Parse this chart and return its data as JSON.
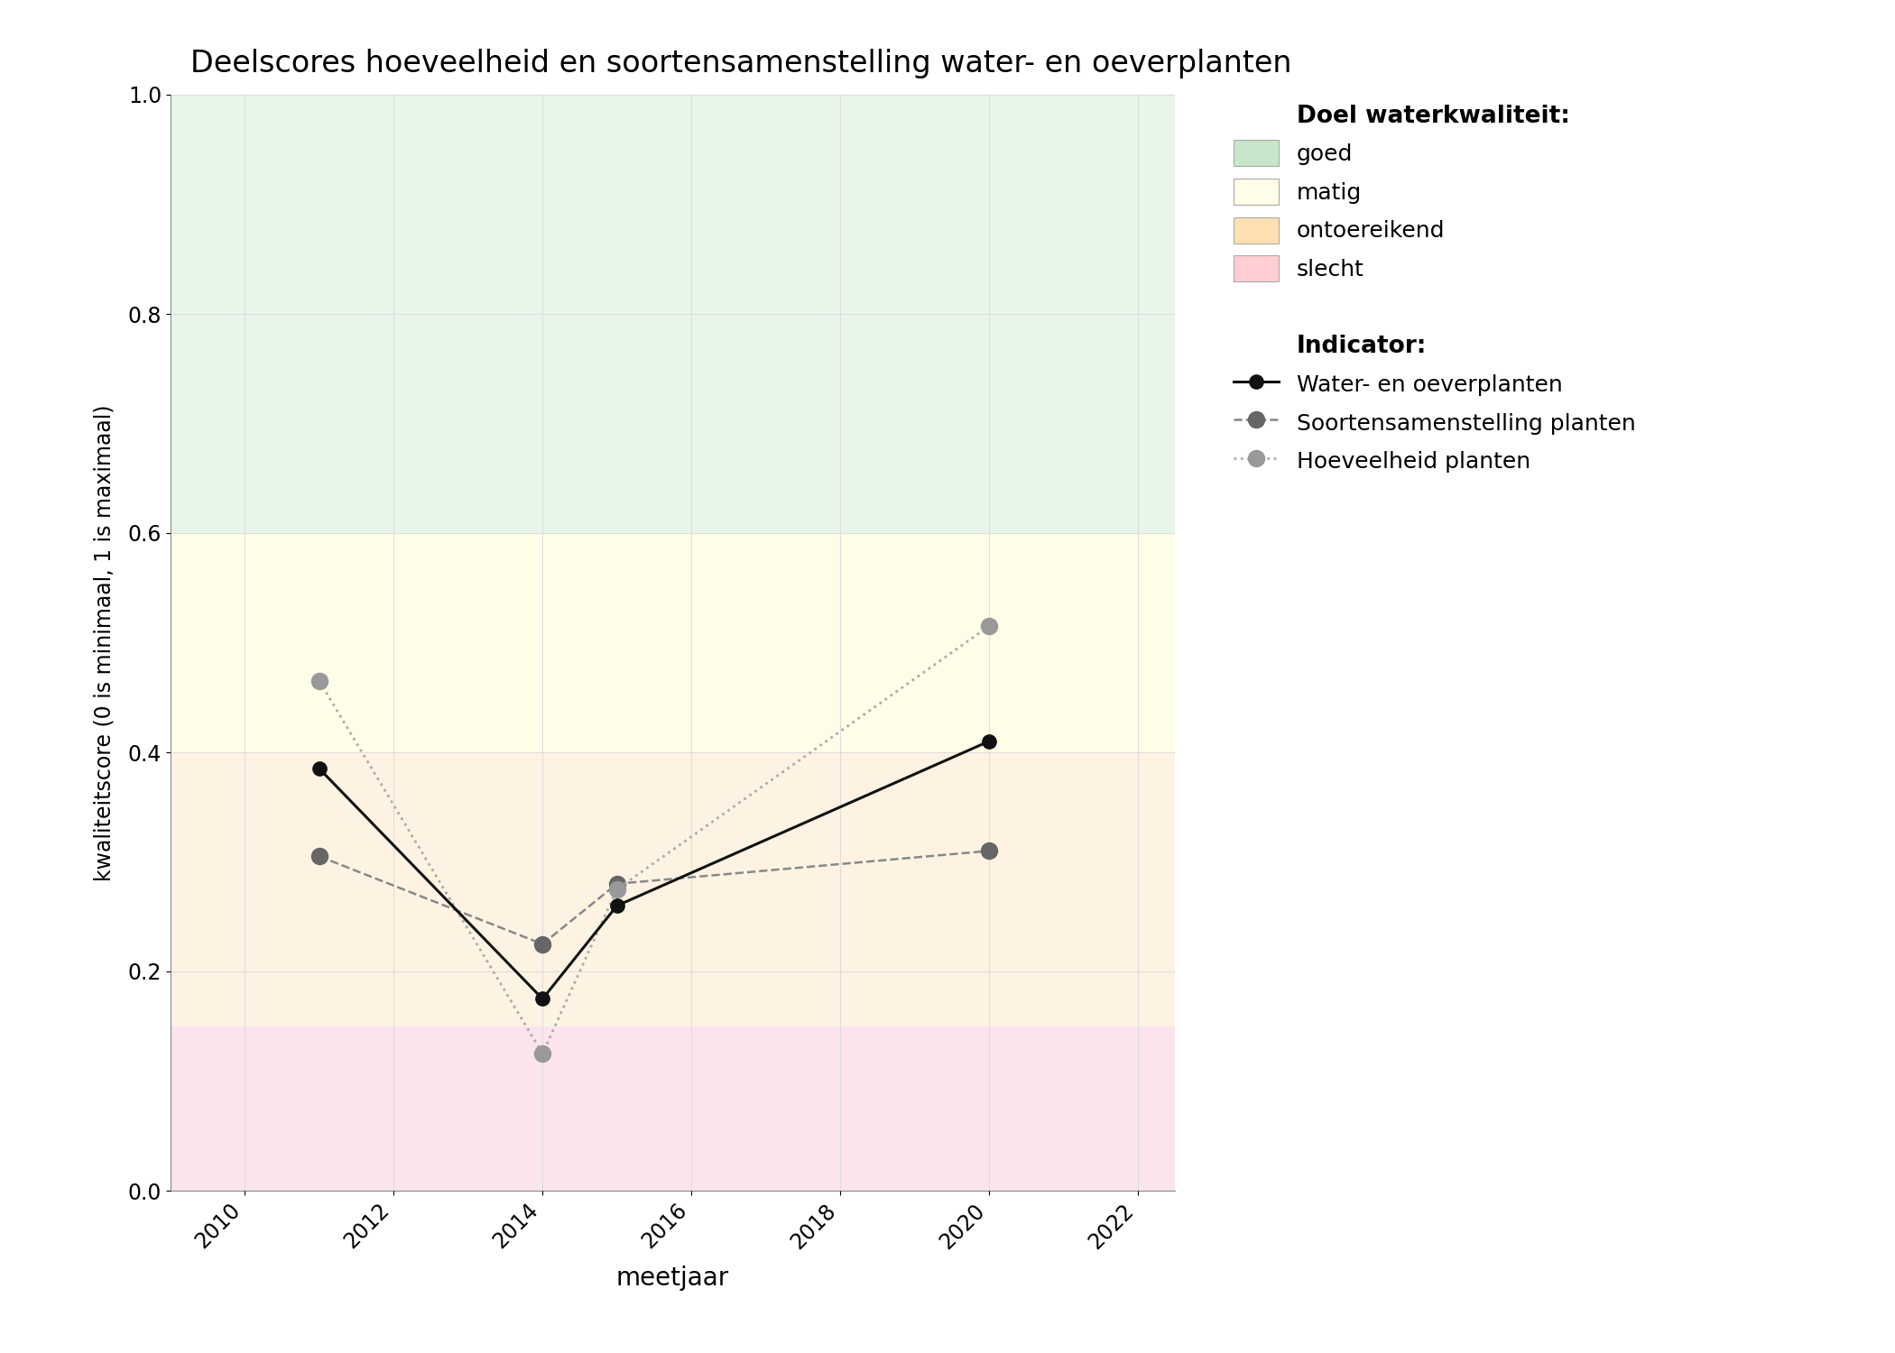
{
  "title": "Deelscores hoeveelheid en soortensamenstelling water- en oeverplanten",
  "xlabel": "meetjaar",
  "ylabel": "kwaliteitscore (0 is minimaal, 1 is maximaal)",
  "xlim": [
    2009.0,
    2022.5
  ],
  "ylim": [
    0.0,
    1.0
  ],
  "xticks": [
    2010,
    2012,
    2014,
    2016,
    2018,
    2020,
    2022
  ],
  "yticks": [
    0.0,
    0.2,
    0.4,
    0.6,
    0.8,
    1.0
  ],
  "bg_color": "#ffffff",
  "plot_bg_color": "#ffffff",
  "zones": [
    {
      "label": "goed",
      "ymin": 0.6,
      "ymax": 1.0,
      "color": "#e8f5e9"
    },
    {
      "label": "matig",
      "ymin": 0.4,
      "ymax": 0.6,
      "color": "#fefde7"
    },
    {
      "label": "ontoereikend",
      "ymin": 0.15,
      "ymax": 0.4,
      "color": "#fef3e2"
    },
    {
      "label": "slecht",
      "ymin": 0.0,
      "ymax": 0.15,
      "color": "#fce4ec"
    }
  ],
  "line_water_oever": {
    "label": "Water- en oeverplanten",
    "years": [
      2011,
      2014,
      2015,
      2020
    ],
    "values": [
      0.385,
      0.175,
      0.26,
      0.41
    ],
    "color": "#111111",
    "linestyle": "-",
    "linewidth": 2.2,
    "marker": "o",
    "markersize": 11,
    "markerfacecolor": "#111111",
    "markeredgecolor": "#111111",
    "zorder": 5
  },
  "line_soorten": {
    "label": "Soortensamenstelling planten",
    "years": [
      2011,
      2014,
      2015,
      2020
    ],
    "values": [
      0.305,
      0.225,
      0.28,
      0.31
    ],
    "color": "#888888",
    "linestyle": "--",
    "linewidth": 1.8,
    "marker": "o",
    "markersize": 13,
    "markerfacecolor": "#666666",
    "markeredgecolor": "#666666",
    "zorder": 4
  },
  "line_hoeveelheid": {
    "label": "Hoeveelheid planten",
    "years": [
      2011,
      2014,
      2015,
      2020
    ],
    "values": [
      0.465,
      0.125,
      0.275,
      0.515
    ],
    "color": "#aaaaaa",
    "linestyle": ":",
    "linewidth": 2.0,
    "marker": "o",
    "markersize": 13,
    "markerfacecolor": "#999999",
    "markeredgecolor": "#999999",
    "zorder": 4
  },
  "legend_title_doel": "Doel waterkwaliteit:",
  "legend_title_indicator": "Indicator:",
  "zone_legend_colors": {
    "goed": "#c8e6c9",
    "matig": "#fffde7",
    "ontoereikend": "#ffe0b2",
    "slecht": "#ffcdd2"
  },
  "grid_color": "#dddddd",
  "spine_color": "#888888"
}
